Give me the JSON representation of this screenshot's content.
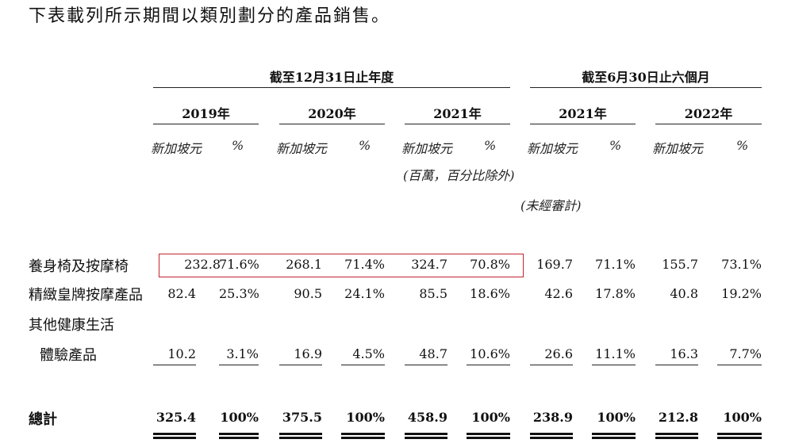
{
  "intro": "下表載列所示期間以類別劃分的產品銷售。",
  "header": {
    "group_year": "截至12月31日止年度",
    "group_half": "截至6月30日止六個月",
    "years": [
      "2019年",
      "2020年",
      "2021年",
      "2021年",
      "2022年"
    ],
    "currency": "新加坡元",
    "pct": "%",
    "unit_note": "(百萬，百分比除外)",
    "unaudited_note": "(未經審計)"
  },
  "rows": [
    {
      "label": "養身椅及按摩椅",
      "values": [
        "232.8",
        "71.6%",
        "268.1",
        "71.4%",
        "324.7",
        "70.8%",
        "169.7",
        "71.1%",
        "155.7",
        "73.1%"
      ]
    },
    {
      "label": "精緻皇牌按摩產品",
      "values": [
        "82.4",
        "25.3%",
        "90.5",
        "24.1%",
        "85.5",
        "18.6%",
        "42.6",
        "17.8%",
        "40.8",
        "19.2%"
      ]
    },
    {
      "label": "其他健康生活",
      "label2": "體驗產品",
      "values": [
        "10.2",
        "3.1%",
        "16.9",
        "4.5%",
        "48.7",
        "10.6%",
        "26.6",
        "11.1%",
        "16.3",
        "7.7%"
      ]
    }
  ],
  "total": {
    "label": "總計",
    "values": [
      "325.4",
      "100%",
      "375.5",
      "100%",
      "458.9",
      "100%",
      "238.9",
      "100%",
      "212.8",
      "100%"
    ]
  },
  "highlight_color": "#c2232f"
}
